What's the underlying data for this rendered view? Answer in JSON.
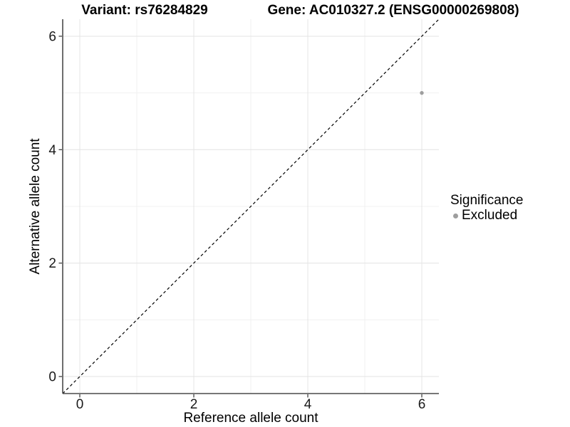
{
  "header": {
    "left_title": "Variant: rs76284829",
    "right_title": "Gene: AC010327.2 (ENSG00000269808)"
  },
  "chart_data": {
    "type": "scatter",
    "titles": {
      "left": "Variant: rs76284829",
      "right": "Gene: AC010327.2 (ENSG00000269808)"
    },
    "xlabel": "Reference allele count",
    "ylabel": "Alternative allele count",
    "xlim": [
      -0.3,
      6.3
    ],
    "ylim": [
      -0.3,
      6.3
    ],
    "x_ticks": [
      0,
      2,
      4,
      6
    ],
    "y_ticks": [
      0,
      2,
      4,
      6
    ],
    "x_minor_ticks": [
      1,
      3,
      5
    ],
    "y_minor_ticks": [
      1,
      3,
      5
    ],
    "grid": true,
    "points": [
      {
        "x": 6,
        "y": 5,
        "series": "Excluded",
        "color": "#9e9e9e"
      }
    ],
    "reference_line": {
      "slope": 1,
      "intercept": 0,
      "style": "dashed",
      "color": "#000000"
    },
    "legend": {
      "title": "Significance",
      "position": "right",
      "entries": [
        {
          "label": "Excluded",
          "color": "#9e9e9e"
        }
      ]
    },
    "colors": {
      "grid_major": "#e6e6e6",
      "grid_minor": "#f1f1f1",
      "axis_line": "#4a4a4a",
      "tick_mark": "#333333",
      "point": "#9e9e9e"
    }
  }
}
